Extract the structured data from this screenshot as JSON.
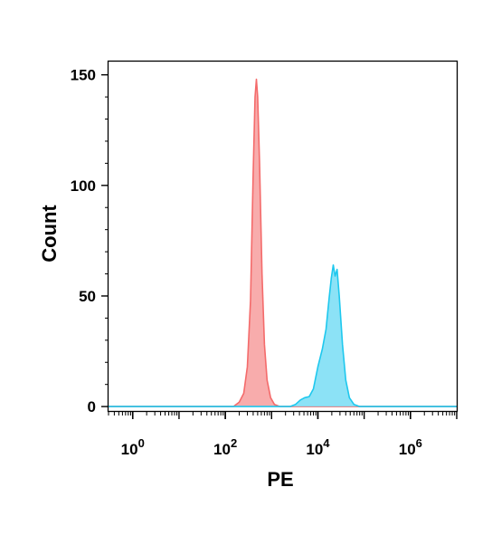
{
  "chart_data": {
    "type": "area",
    "xlabel": "PE",
    "ylabel": "Count",
    "x_scale": "log10",
    "xlim": [
      0.3,
      10000000
    ],
    "ylim": [
      -2,
      156
    ],
    "x_ticks": [
      {
        "value": 1,
        "base": "10",
        "exp": "0"
      },
      {
        "value": 100,
        "base": "10",
        "exp": "2"
      },
      {
        "value": 10000,
        "base": "10",
        "exp": "4"
      },
      {
        "value": 1000000,
        "base": "10",
        "exp": "6"
      }
    ],
    "y_ticks": [
      {
        "value": 0,
        "label": "0"
      },
      {
        "value": 50,
        "label": "50"
      },
      {
        "value": 100,
        "label": "100"
      },
      {
        "value": 150,
        "label": "150"
      }
    ],
    "series": [
      {
        "color": "#f46b6b",
        "fill": "#f7a3a3",
        "points": [
          [
            0.3,
            0
          ],
          [
            150,
            0
          ],
          [
            200,
            2
          ],
          [
            250,
            6
          ],
          [
            300,
            18
          ],
          [
            350,
            48
          ],
          [
            400,
            105
          ],
          [
            440,
            140
          ],
          [
            470,
            148
          ],
          [
            500,
            140
          ],
          [
            550,
            110
          ],
          [
            620,
            60
          ],
          [
            700,
            28
          ],
          [
            800,
            12
          ],
          [
            950,
            4
          ],
          [
            1150,
            1
          ],
          [
            1500,
            0
          ],
          [
            10000000,
            0
          ]
        ]
      },
      {
        "color": "#1ec8ee",
        "fill": "#7fdff5",
        "points": [
          [
            0.3,
            0
          ],
          [
            2500,
            0
          ],
          [
            3300,
            1
          ],
          [
            4200,
            3
          ],
          [
            5200,
            4
          ],
          [
            6500,
            4.5
          ],
          [
            8000,
            8
          ],
          [
            10000,
            18
          ],
          [
            12500,
            26
          ],
          [
            15000,
            35
          ],
          [
            17500,
            49
          ],
          [
            19500,
            58
          ],
          [
            21500,
            64
          ],
          [
            23500,
            59
          ],
          [
            26000,
            62
          ],
          [
            29000,
            50
          ],
          [
            34000,
            28
          ],
          [
            40000,
            12
          ],
          [
            48000,
            4
          ],
          [
            60000,
            1
          ],
          [
            80000,
            0
          ],
          [
            10000000,
            0
          ]
        ]
      }
    ]
  }
}
